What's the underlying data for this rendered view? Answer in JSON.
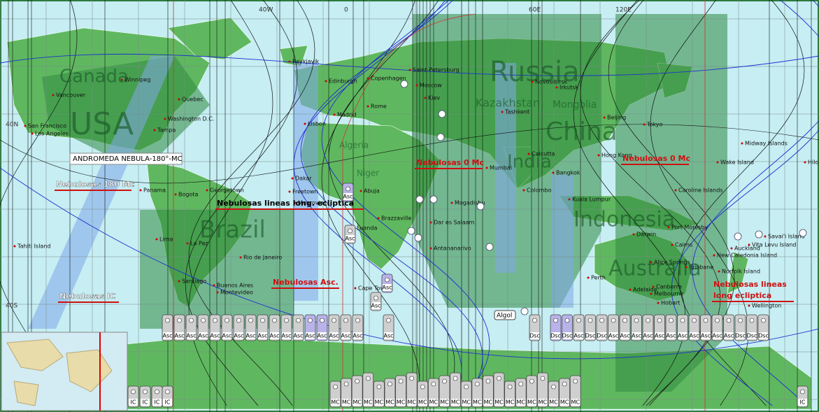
{
  "grid_labels": [
    "40W",
    "0",
    "60E",
    "120E",
    "40N",
    "40S"
  ],
  "countries": [
    "Canada",
    "USA",
    "Russia",
    "China",
    "India",
    "Brazil",
    "Indonesia",
    "Australia",
    "Kazakhstan",
    "Mongolia",
    "Algeria",
    "Niger"
  ],
  "cities": [
    "Reykjavik",
    "Winnipeg",
    "Vancouver",
    "San Francisco",
    "Los Angeles",
    "Washington D.C.",
    "Quebec",
    "Tampa",
    "Panama",
    "Bogota",
    "Georgetown",
    "Lima",
    "La Paz",
    "Santiago",
    "Buenos Aires",
    "Rio de Janeiro",
    "Montevideo",
    "Dakar",
    "Freetown",
    "Monrovia",
    "Lisbon",
    "Madrid",
    "Rome",
    "Edinburgh",
    "Copenhagen",
    "Saint-Petersburg",
    "Moscow",
    "Kiev",
    "Tashkent",
    "Novosibirsk",
    "Irkutsk",
    "Beijing",
    "Tokyo",
    "Hong Kong",
    "Bangkok",
    "Calcutta",
    "Mumbai",
    "Colombo",
    "Kuala Lumpur",
    "Mogadishu",
    "Dar es Salaam",
    "Antananarivo",
    "Cape Town",
    "Luanda",
    "Brazzaville",
    "Abuja",
    "Wake Island",
    "Midway Islands",
    "Caroline Islands",
    "Port Moresby",
    "Darwin",
    "Cairns",
    "Alice Springs",
    "Brisbane",
    "Perth",
    "Adelaide",
    "Canberra",
    "Melbourne",
    "Hobart",
    "Norfolk Island",
    "New Caledonia Island",
    "Auckland",
    "Wellington",
    "Vita Levu Island",
    "Savai'i Island",
    "Tahiti Island",
    "Hilo"
  ],
  "annotations": {
    "andromeda": "ANDROMEDA NEBULA-180°-MC",
    "neb_180_mc": "Nebulosas 180 Mc",
    "neb_lines": "Nebulosas lineas long. ecliptica",
    "neb_0_mc_a": "Nebulosas 0 Mc",
    "neb_0_mc_b": "Nebulosas 0 Mc",
    "neb_asc": "Nebulosas Asc.",
    "neb_ic": "Nebulosas IC",
    "neb_lines_2a": "Nebulosas lineas",
    "neb_lines_2b": "long ecliptica",
    "algol": "Algol"
  },
  "asc_row": [
    "Asc",
    "Asc",
    "Asc",
    "Asc",
    "Asc",
    "Asc",
    "Asc",
    "Asc",
    "Asc",
    "Asc",
    "Asc",
    "Asc",
    "Asc",
    "Asc",
    "Asc",
    "Asc",
    "Asc",
    "Asc",
    "Dsc",
    "Dsc",
    "Dsc",
    "Asc",
    "Dsc",
    "Dsc",
    "Asc",
    "Asc",
    "Asc",
    "Asc",
    "Asc",
    "Asc",
    "Asc",
    "Asc",
    "Asc",
    "Asc",
    "Asc",
    "Dsc",
    "Dsc",
    "Dsc"
  ],
  "float_boxes": [
    "Asc",
    "Asc",
    "Asc",
    "Asc"
  ],
  "mc_row": [
    "MC",
    "MC",
    "MC",
    "MC",
    "MC",
    "MC",
    "MC",
    "MC",
    "MC",
    "MC",
    "MC",
    "MC",
    "MC",
    "MC",
    "MC",
    "MC",
    "MC",
    "MC",
    "MC",
    "MC",
    "MC",
    "MC",
    "MC"
  ],
  "ic_row": [
    "IC",
    "IC",
    "IC",
    "IC",
    "IC"
  ]
}
